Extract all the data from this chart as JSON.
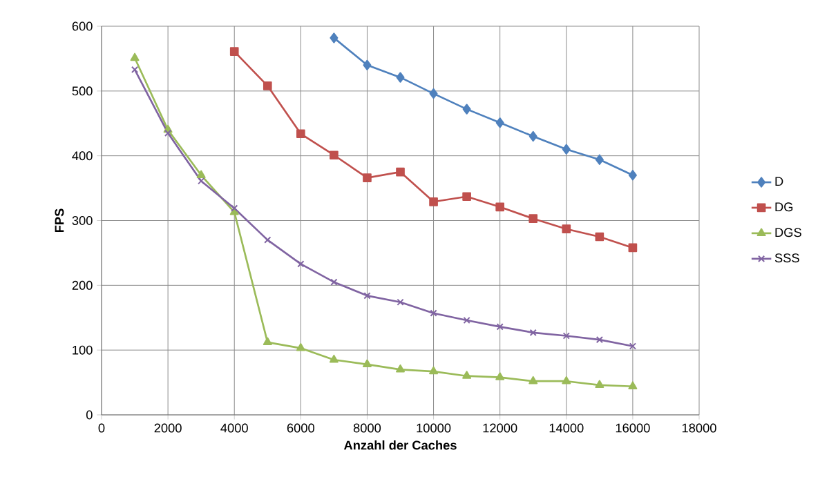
{
  "chart_data": {
    "type": "line",
    "xlabel": "Anzahl der Caches",
    "ylabel": "FPS",
    "xlim": [
      0,
      18000
    ],
    "xticks": [
      0,
      2000,
      4000,
      6000,
      8000,
      10000,
      12000,
      14000,
      16000,
      18000
    ],
    "ylim": [
      0,
      600
    ],
    "yticks": [
      0,
      100,
      200,
      300,
      400,
      500,
      600
    ],
    "grid": true,
    "legend": "right",
    "series": [
      {
        "name": "D",
        "color": "#4f81bd",
        "marker": "diamond",
        "x": [
          7000,
          8000,
          9000,
          10000,
          11000,
          12000,
          13000,
          14000,
          15000,
          16000
        ],
        "values": [
          582,
          540,
          521,
          496,
          472,
          451,
          430,
          410,
          394,
          370
        ]
      },
      {
        "name": "DG",
        "color": "#c0504d",
        "marker": "square",
        "x": [
          4000,
          5000,
          6000,
          7000,
          8000,
          9000,
          10000,
          11000,
          12000,
          13000,
          14000,
          15000,
          16000
        ],
        "values": [
          561,
          508,
          434,
          401,
          366,
          375,
          329,
          337,
          321,
          303,
          287,
          275,
          258
        ]
      },
      {
        "name": "DGS",
        "color": "#9bbb59",
        "marker": "triangle",
        "x": [
          1000,
          2000,
          3000,
          4000,
          5000,
          6000,
          7000,
          8000,
          9000,
          10000,
          11000,
          12000,
          13000,
          14000,
          15000,
          16000
        ],
        "values": [
          551,
          440,
          370,
          313,
          112,
          103,
          85,
          78,
          70,
          67,
          60,
          58,
          52,
          52,
          46,
          44
        ]
      },
      {
        "name": "SSS",
        "color": "#8064a2",
        "marker": "cross",
        "x": [
          1000,
          2000,
          3000,
          4000,
          5000,
          6000,
          7000,
          8000,
          9000,
          10000,
          11000,
          12000,
          13000,
          14000,
          15000,
          16000
        ],
        "values": [
          533,
          435,
          361,
          319,
          270,
          233,
          205,
          184,
          174,
          157,
          146,
          136,
          127,
          122,
          116,
          106
        ]
      }
    ]
  }
}
